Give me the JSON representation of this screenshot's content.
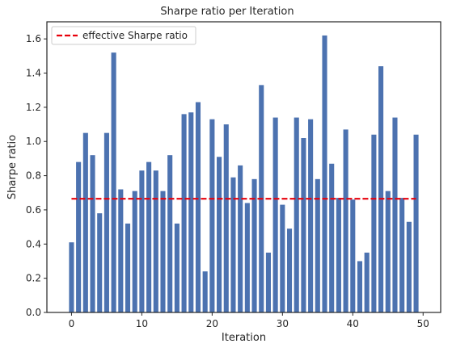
{
  "chart_data": {
    "type": "bar",
    "title": "Sharpe ratio per Iteration",
    "xlabel": "Iteration",
    "ylabel": "Sharpe ratio",
    "xlim": [
      -3.5,
      52.5
    ],
    "ylim": [
      0.0,
      1.7
    ],
    "xticks": [
      0,
      10,
      20,
      30,
      40,
      50
    ],
    "yticks": [
      0.0,
      0.2,
      0.4,
      0.6,
      0.8,
      1.0,
      1.2,
      1.4,
      1.6
    ],
    "grid": false,
    "legend_position": "top-left",
    "x": [
      0,
      1,
      2,
      3,
      4,
      5,
      6,
      7,
      8,
      9,
      10,
      11,
      12,
      13,
      14,
      15,
      16,
      17,
      18,
      19,
      20,
      21,
      22,
      23,
      24,
      25,
      26,
      27,
      28,
      29,
      30,
      31,
      32,
      33,
      34,
      35,
      36,
      37,
      38,
      39,
      40,
      41,
      42,
      43,
      44,
      45,
      46,
      47,
      48,
      49
    ],
    "values": [
      0.41,
      0.88,
      1.05,
      0.92,
      0.58,
      1.05,
      1.52,
      0.72,
      0.52,
      0.71,
      0.83,
      0.88,
      0.83,
      0.71,
      0.92,
      0.52,
      1.16,
      1.17,
      1.23,
      0.24,
      1.13,
      0.91,
      1.1,
      0.79,
      0.86,
      0.64,
      0.78,
      1.33,
      0.35,
      1.14,
      0.63,
      0.49,
      1.14,
      1.02,
      1.13,
      0.78,
      1.62,
      0.87,
      0.67,
      1.07,
      0.66,
      0.3,
      0.35,
      1.04,
      1.44,
      0.71,
      1.14,
      0.67,
      0.53,
      1.04
    ],
    "bar_color": "#4c72b0",
    "reference_line": {
      "label": "effective Sharpe ratio",
      "value": 0.665,
      "x_start": 0,
      "x_end": 49,
      "color": "#e8000b",
      "style": "dashed"
    }
  }
}
